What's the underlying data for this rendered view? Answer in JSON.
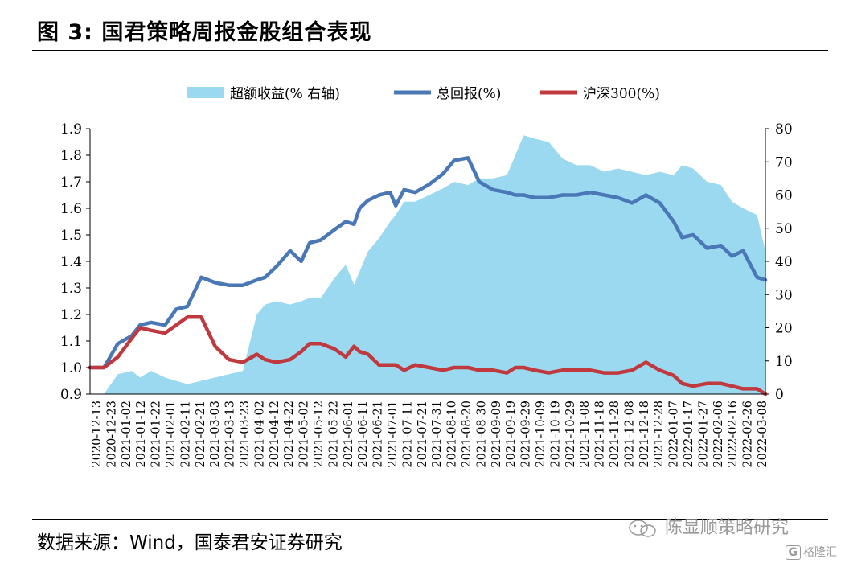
{
  "figure": {
    "title": "图 3:  国君策略周报金股组合表现",
    "source": "数据来源：Wind，国泰君安证券研究",
    "watermark": "陈显顺策略研究",
    "logo_text": "格隆汇"
  },
  "chart_data": {
    "type": "area",
    "legend": [
      {
        "name": "超额收益(% 右轴)",
        "color": "#9ad9f0",
        "kind": "area"
      },
      {
        "name": "总回报(%)",
        "color": "#4a78b6",
        "kind": "line"
      },
      {
        "name": "沪深300(%)",
        "color": "#c0393e",
        "kind": "line"
      }
    ],
    "legend_position": "top",
    "grid": false,
    "y_left": {
      "min": 0.9,
      "max": 1.9,
      "ticks": [
        "1.9",
        "1.8",
        "1.7",
        "1.6",
        "1.5",
        "1.4",
        "1.3",
        "1.2",
        "1.1",
        "1.0",
        "0.9"
      ]
    },
    "y_right": {
      "min": 0,
      "max": 80,
      "ticks": [
        "80",
        "70",
        "60",
        "50",
        "40",
        "30",
        "20",
        "10",
        "0"
      ]
    },
    "x_ticks": [
      "2020-12-13",
      "2020-12-23",
      "2021-01-02",
      "2021-01-12",
      "2021-01-22",
      "2021-02-01",
      "2021-02-11",
      "2021-02-21",
      "2021-03-03",
      "2021-03-13",
      "2021-03-23",
      "2021-04-02",
      "2021-04-12",
      "2021-04-22",
      "2021-05-02",
      "2021-05-12",
      "2021-05-22",
      "2021-06-01",
      "2021-06-11",
      "2021-06-21",
      "2021-07-01",
      "2021-07-11",
      "2021-07-21",
      "2021-07-31",
      "2021-08-10",
      "2021-08-20",
      "2021-08-30",
      "2021-09-09",
      "2021-09-19",
      "2021-09-29",
      "2021-10-09",
      "2021-10-19",
      "2021-10-29",
      "2021-11-08",
      "2021-11-18",
      "2021-11-28",
      "2021-12-08",
      "2021-12-18",
      "2021-12-28",
      "2022-01-07",
      "2022-01-17",
      "2022-01-27",
      "2022-02-06",
      "2022-02-16",
      "2022-02-26",
      "2022-03-08"
    ],
    "x_index": [
      0,
      5,
      10,
      15,
      18,
      22,
      27,
      31,
      35,
      40,
      45,
      50,
      55,
      60,
      63,
      67,
      72,
      76,
      79,
      83,
      88,
      92,
      95,
      97,
      100,
      104,
      108,
      110,
      113,
      117,
      122,
      127,
      131,
      136,
      140,
      145,
      150,
      153,
      156,
      160,
      165,
      170,
      175,
      180,
      185,
      190,
      195,
      200,
      205,
      210,
      213,
      217,
      222,
      227,
      231,
      235,
      240,
      243
    ],
    "series": [
      {
        "name": "超额收益(% 右轴)",
        "axis": "right",
        "values": [
          0,
          0,
          6,
          7,
          5,
          7,
          5,
          4,
          3,
          4,
          5,
          6,
          7,
          24,
          27,
          28,
          27,
          28,
          29,
          29,
          35,
          39,
          33,
          37,
          43,
          47,
          52,
          54,
          58,
          58,
          60,
          62,
          64,
          63,
          65,
          65,
          66,
          72,
          78,
          77,
          76,
          71,
          69,
          69,
          67,
          68,
          67,
          66,
          67,
          66,
          69,
          68,
          64,
          63,
          58,
          56,
          54,
          43
        ]
      },
      {
        "name": "总回报(%)",
        "axis": "left",
        "values": [
          1.0,
          1.0,
          1.09,
          1.12,
          1.16,
          1.17,
          1.16,
          1.22,
          1.23,
          1.34,
          1.32,
          1.31,
          1.31,
          1.33,
          1.34,
          1.38,
          1.44,
          1.4,
          1.47,
          1.48,
          1.52,
          1.55,
          1.54,
          1.6,
          1.63,
          1.65,
          1.66,
          1.61,
          1.67,
          1.66,
          1.69,
          1.73,
          1.78,
          1.79,
          1.7,
          1.67,
          1.66,
          1.65,
          1.65,
          1.64,
          1.64,
          1.65,
          1.65,
          1.66,
          1.65,
          1.64,
          1.62,
          1.65,
          1.62,
          1.55,
          1.49,
          1.5,
          1.45,
          1.46,
          1.42,
          1.44,
          1.34,
          1.33
        ]
      },
      {
        "name": "沪深300(%)",
        "axis": "left",
        "values": [
          1.0,
          1.0,
          1.04,
          1.11,
          1.15,
          1.14,
          1.13,
          1.16,
          1.19,
          1.19,
          1.08,
          1.03,
          1.02,
          1.05,
          1.03,
          1.02,
          1.03,
          1.06,
          1.09,
          1.09,
          1.07,
          1.04,
          1.08,
          1.06,
          1.05,
          1.01,
          1.01,
          1.01,
          0.99,
          1.01,
          1.0,
          0.99,
          1.0,
          1.0,
          0.99,
          0.99,
          0.98,
          1.0,
          1.0,
          0.99,
          0.98,
          0.99,
          0.99,
          0.99,
          0.98,
          0.98,
          0.99,
          1.02,
          0.99,
          0.97,
          0.94,
          0.93,
          0.94,
          0.94,
          0.93,
          0.92,
          0.92,
          0.9
        ]
      }
    ]
  }
}
